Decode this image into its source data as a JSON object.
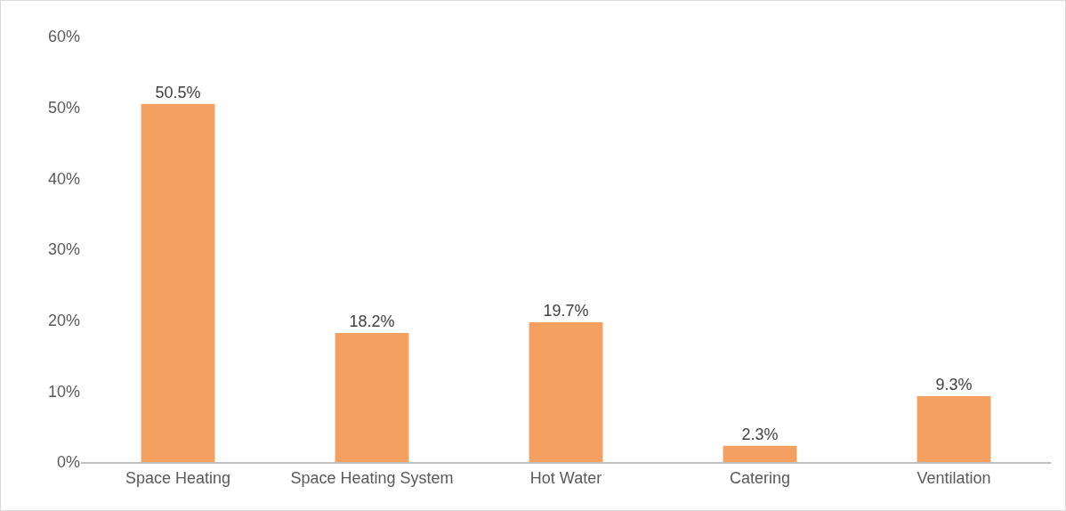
{
  "chart_data": {
    "type": "bar",
    "categories": [
      "Space Heating",
      "Space Heating System",
      "Hot Water",
      "Catering",
      "Ventilation"
    ],
    "values": [
      50.5,
      18.2,
      19.7,
      2.3,
      9.3
    ],
    "value_labels": [
      "50.5%",
      "18.2%",
      "19.7%",
      "2.3%",
      "9.3%"
    ],
    "color": "#f4a061",
    "ylim": [
      0,
      60
    ],
    "yticks": [
      {
        "value": 0,
        "label": "0%"
      },
      {
        "value": 10,
        "label": "10%"
      },
      {
        "value": 20,
        "label": "20%"
      },
      {
        "value": 30,
        "label": "30%"
      },
      {
        "value": 40,
        "label": "40%"
      },
      {
        "value": 50,
        "label": "50%"
      },
      {
        "value": 60,
        "label": "60%"
      }
    ],
    "grid": false,
    "legend": false
  }
}
